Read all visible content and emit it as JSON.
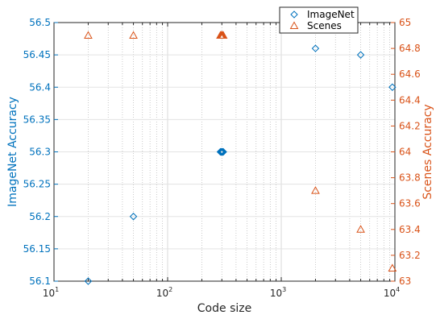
{
  "chart_data": {
    "type": "scatter",
    "title": "",
    "xlabel": "Code size",
    "x_scale": "log",
    "xlim": [
      10,
      10000
    ],
    "x_ticks": [
      {
        "base": "10",
        "exp": "1"
      },
      {
        "base": "10",
        "exp": "2"
      },
      {
        "base": "10",
        "exp": "3"
      },
      {
        "base": "10",
        "exp": "4"
      }
    ],
    "y_left": {
      "label": "ImageNet Accuracy",
      "ylim": [
        56.1,
        56.5
      ],
      "ticks": [
        "56.1",
        "56.15",
        "56.2",
        "56.25",
        "56.3",
        "56.35",
        "56.4",
        "56.45",
        "56.5"
      ],
      "color": "#0072BD"
    },
    "y_right": {
      "label": "Scenes Accuracy",
      "ylim": [
        63,
        65
      ],
      "ticks": [
        "63",
        "63.2",
        "63.4",
        "63.6",
        "63.8",
        "64",
        "64.2",
        "64.4",
        "64.6",
        "64.8",
        "65"
      ],
      "color": "#D95319"
    },
    "grid": true,
    "legend_position": "top-right",
    "series": [
      {
        "name": "ImageNet",
        "axis": "left",
        "marker": "circle",
        "color": "#0072BD",
        "points": [
          {
            "x": 20,
            "y": 56.1
          },
          {
            "x": 50,
            "y": 56.2
          },
          {
            "x": 300,
            "y": 56.3
          },
          {
            "x": 2000,
            "y": 56.46
          },
          {
            "x": 5000,
            "y": 56.45
          },
          {
            "x": 9500,
            "y": 56.4
          }
        ]
      },
      {
        "name": "Scenes",
        "axis": "right",
        "marker": "triangle",
        "color": "#D95319",
        "points": [
          {
            "x": 20,
            "y": 64.9
          },
          {
            "x": 50,
            "y": 64.9
          },
          {
            "x": 300,
            "y": 64.9
          },
          {
            "x": 2000,
            "y": 63.7
          },
          {
            "x": 5000,
            "y": 63.4
          },
          {
            "x": 9500,
            "y": 63.1
          }
        ]
      }
    ]
  }
}
